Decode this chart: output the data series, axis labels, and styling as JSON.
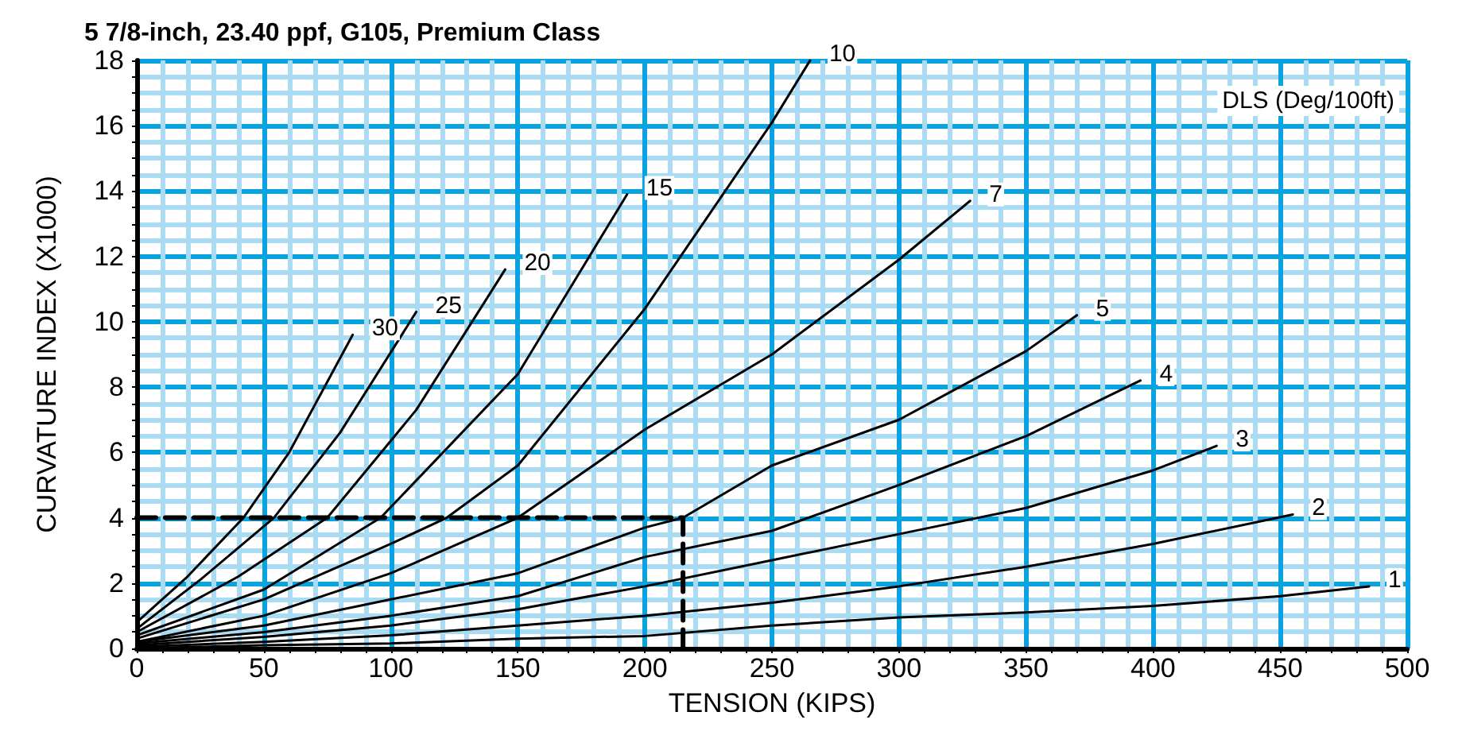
{
  "chart_data": {
    "type": "line",
    "title": "5 7/8-inch, 23.40 ppf, G105, Premium Class",
    "xlabel": "TENSION (KIPS)",
    "ylabel": "CURVATURE INDEX (X1000)",
    "legend_title": "DLS (Deg/100ft)",
    "xlim": [
      0,
      500
    ],
    "ylim": [
      0,
      18
    ],
    "xticks": [
      0,
      {
        "value": 10,
        "label": null
      },
      {
        "value": 20,
        "label": null
      },
      {
        "value": 30,
        "label": null
      },
      {
        "value": 40,
        "label": null
      },
      50,
      {
        "value": 60,
        "label": null
      },
      {
        "value": 70,
        "label": null
      },
      {
        "value": 80,
        "label": null
      },
      {
        "value": 90,
        "label": null
      },
      100,
      {
        "value": 110,
        "label": null
      },
      {
        "value": 120,
        "label": null
      },
      {
        "value": 130,
        "label": null
      },
      {
        "value": 140,
        "label": null
      },
      150,
      {
        "value": 160,
        "label": null
      },
      {
        "value": 170,
        "label": null
      },
      {
        "value": 180,
        "label": null
      },
      {
        "value": 190,
        "label": null
      },
      200,
      {
        "value": 210,
        "label": null
      },
      {
        "value": 220,
        "label": null
      },
      {
        "value": 230,
        "label": null
      },
      {
        "value": 240,
        "label": null
      },
      250,
      {
        "value": 260,
        "label": null
      },
      {
        "value": 270,
        "label": null
      },
      {
        "value": 280,
        "label": null
      },
      {
        "value": 290,
        "label": null
      },
      300,
      {
        "value": 310,
        "label": null
      },
      {
        "value": 320,
        "label": null
      },
      {
        "value": 330,
        "label": null
      },
      {
        "value": 340,
        "label": null
      },
      350,
      {
        "value": 360,
        "label": null
      },
      {
        "value": 370,
        "label": null
      },
      {
        "value": 380,
        "label": null
      },
      {
        "value": 390,
        "label": null
      },
      400,
      {
        "value": 410,
        "label": null
      },
      {
        "value": 420,
        "label": null
      },
      {
        "value": 430,
        "label": null
      },
      {
        "value": 440,
        "label": null
      },
      450,
      {
        "value": 460,
        "label": null
      },
      {
        "value": 470,
        "label": null
      },
      {
        "value": 480,
        "label": null
      },
      {
        "value": 490,
        "label": null
      },
      500
    ],
    "yticks": [
      0,
      {
        "value": 0.5,
        "label": null
      },
      {
        "value": 1,
        "label": null
      },
      {
        "value": 1.5,
        "label": null
      },
      2,
      {
        "value": 2.5,
        "label": null
      },
      {
        "value": 3,
        "label": null
      },
      {
        "value": 3.5,
        "label": null
      },
      4,
      {
        "value": 4.5,
        "label": null
      },
      {
        "value": 5,
        "label": null
      },
      {
        "value": 5.5,
        "label": null
      },
      6,
      {
        "value": 6.5,
        "label": null
      },
      {
        "value": 7,
        "label": null
      },
      {
        "value": 7.5,
        "label": null
      },
      8,
      {
        "value": 8.5,
        "label": null
      },
      {
        "value": 9,
        "label": null
      },
      {
        "value": 9.5,
        "label": null
      },
      10,
      {
        "value": 10.5,
        "label": null
      },
      {
        "value": 11,
        "label": null
      },
      {
        "value": 11.5,
        "label": null
      },
      12,
      {
        "value": 12.5,
        "label": null
      },
      {
        "value": 13,
        "label": null
      },
      {
        "value": 13.5,
        "label": null
      },
      14,
      {
        "value": 14.5,
        "label": null
      },
      {
        "value": 15,
        "label": null
      },
      {
        "value": 15.5,
        "label": null
      },
      16,
      {
        "value": 16.5,
        "label": null
      },
      {
        "value": 17,
        "label": null
      },
      {
        "value": 17.5,
        "label": null
      },
      18
    ],
    "grid": true,
    "legend": false,
    "marker": "none",
    "line_style": "solid",
    "series": [
      {
        "name": "30",
        "color": "#000000",
        "x": [
          0,
          20,
          42,
          60,
          85
        ],
        "values": [
          0.8,
          2.2,
          4,
          6,
          9.6
        ]
      },
      {
        "name": "25",
        "color": "#000000",
        "x": [
          0,
          25,
          54,
          80,
          110
        ],
        "values": [
          0.6,
          2.1,
          4,
          6.6,
          10.3
        ]
      },
      {
        "name": "20",
        "color": "#000000",
        "x": [
          0,
          40,
          75,
          110,
          145
        ],
        "values": [
          0.5,
          2.2,
          4,
          7.3,
          11.6
        ]
      },
      {
        "name": "15",
        "color": "#000000",
        "x": [
          0,
          50,
          96,
          150,
          193
        ],
        "values": [
          0.4,
          1.8,
          4,
          8.4,
          13.9
        ]
      },
      {
        "name": "10",
        "color": "#000000",
        "x": [
          0,
          50,
          100,
          122,
          150,
          200,
          250,
          265
        ],
        "values": [
          0.3,
          1.5,
          3.2,
          4,
          5.6,
          10.4,
          16.1,
          18
        ]
      },
      {
        "name": "7",
        "color": "#000000",
        "x": [
          0,
          50,
          100,
          150,
          200,
          250,
          300,
          328
        ],
        "values": [
          0.2,
          1,
          2.3,
          4,
          6.7,
          9,
          11.9,
          13.7
        ]
      },
      {
        "name": "5",
        "color": "#000000",
        "x": [
          0,
          50,
          100,
          150,
          200,
          215,
          250,
          300,
          350,
          370
        ],
        "values": [
          0.2,
          0.7,
          1.5,
          2.3,
          3.7,
          4,
          5.6,
          7,
          9.1,
          10.2
        ]
      },
      {
        "name": "4",
        "color": "#000000",
        "x": [
          0,
          50,
          100,
          150,
          200,
          250,
          300,
          350,
          395
        ],
        "values": [
          0.15,
          0.5,
          1,
          1.6,
          2.8,
          3.6,
          5,
          6.5,
          8.2
        ]
      },
      {
        "name": "3",
        "color": "#000000",
        "x": [
          0,
          50,
          100,
          150,
          200,
          250,
          300,
          350,
          400,
          425
        ],
        "values": [
          0.1,
          0.35,
          0.7,
          1.2,
          1.9,
          2.7,
          3.5,
          4.3,
          5.45,
          6.2
        ]
      },
      {
        "name": "2",
        "color": "#000000",
        "x": [
          0,
          50,
          100,
          150,
          200,
          250,
          300,
          350,
          400,
          455
        ],
        "values": [
          0.05,
          0.2,
          0.4,
          0.7,
          1,
          1.4,
          1.9,
          2.5,
          3.2,
          4.1
        ]
      },
      {
        "name": "1",
        "color": "#000000",
        "x": [
          0,
          50,
          100,
          150,
          200,
          250,
          300,
          350,
          400,
          450,
          485
        ],
        "values": [
          0,
          0.1,
          0.15,
          0.3,
          0.38,
          0.7,
          0.95,
          1.1,
          1.3,
          1.6,
          1.9
        ]
      },
      {
        "color": "#000000",
        "line_style": "dashed",
        "x": [
          0,
          215,
          215
        ],
        "values": [
          4,
          4,
          0
        ]
      }
    ]
  }
}
